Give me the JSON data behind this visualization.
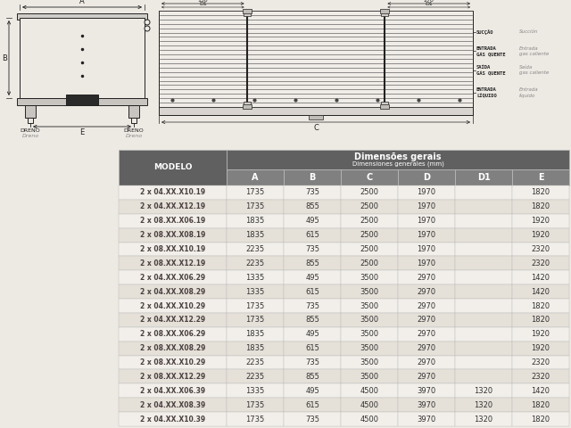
{
  "table_header1": "Dimensões gerais",
  "table_header2": "Dimensiones generales (mm)",
  "model_col": "MODELO",
  "col_headers": [
    "A",
    "B",
    "C",
    "D",
    "D1",
    "E"
  ],
  "rows": [
    [
      "2 x 04.XX.X10.19",
      "1735",
      "735",
      "2500",
      "1970",
      "",
      "1820"
    ],
    [
      "2 x 04.XX.X12.19",
      "1735",
      "855",
      "2500",
      "1970",
      "",
      "1820"
    ],
    [
      "2 x 08.XX.X06.19",
      "1835",
      "495",
      "2500",
      "1970",
      "",
      "1920"
    ],
    [
      "2 x 08.XX.X08.19",
      "1835",
      "615",
      "2500",
      "1970",
      "",
      "1920"
    ],
    [
      "2 x 08.XX.X10.19",
      "2235",
      "735",
      "2500",
      "1970",
      "",
      "2320"
    ],
    [
      "2 x 08.XX.X12.19",
      "2235",
      "855",
      "2500",
      "1970",
      "",
      "2320"
    ],
    [
      "2 x 04.XX.X06.29",
      "1335",
      "495",
      "3500",
      "2970",
      "",
      "1420"
    ],
    [
      "2 x 04.XX.X08.29",
      "1335",
      "615",
      "3500",
      "2970",
      "",
      "1420"
    ],
    [
      "2 x 04.XX.X10.29",
      "1735",
      "735",
      "3500",
      "2970",
      "",
      "1820"
    ],
    [
      "2 x 04.XX.X12.29",
      "1735",
      "855",
      "3500",
      "2970",
      "",
      "1820"
    ],
    [
      "2 x 08.XX.X06.29",
      "1835",
      "495",
      "3500",
      "2970",
      "",
      "1920"
    ],
    [
      "2 x 08.XX.X08.29",
      "1835",
      "615",
      "3500",
      "2970",
      "",
      "1920"
    ],
    [
      "2 x 08.XX.X10.29",
      "2235",
      "735",
      "3500",
      "2970",
      "",
      "2320"
    ],
    [
      "2 x 08.XX.X12.29",
      "2235",
      "855",
      "3500",
      "2970",
      "",
      "2320"
    ],
    [
      "2 x 04.XX.X06.39",
      "1335",
      "495",
      "4500",
      "3970",
      "1320",
      "1420"
    ],
    [
      "2 x 04.XX.X08.39",
      "1735",
      "615",
      "4500",
      "3970",
      "1320",
      "1820"
    ],
    [
      "2 x 04.XX.X10.39",
      "1735",
      "735",
      "4500",
      "3970",
      "1320",
      "1820"
    ]
  ],
  "bg_color": "#ede9e3",
  "header_dark": "#606060",
  "header_mid": "#808080",
  "row_light": "#f2efea",
  "row_dark": "#e5e0d8",
  "text_white": "#ffffff",
  "text_model": "#4a4040",
  "text_data": "#333333",
  "border_color": "#bbbbbb",
  "line_color": "#222222",
  "gray_label": "#888888"
}
